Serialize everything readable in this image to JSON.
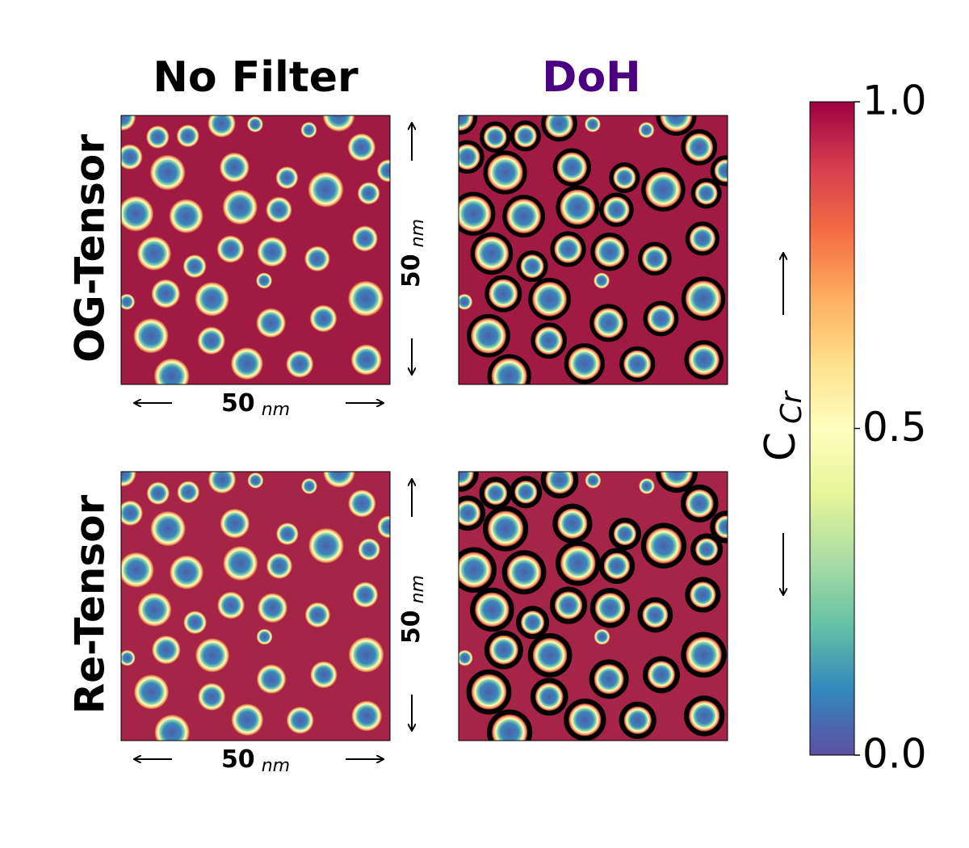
{
  "columns": [
    "No Filter",
    "DoH"
  ],
  "rows": [
    "OG-Tensor",
    "Re-Tensor"
  ],
  "scale": {
    "length": "50",
    "unit": "nm"
  },
  "colorbar": {
    "label": "C",
    "label_sub": "Cr",
    "lim": [
      0,
      1
    ],
    "ticks": [
      {
        "value": 0,
        "label": "0.0"
      },
      {
        "value": 0.5,
        "label": "0.5"
      },
      {
        "value": 1,
        "label": "1.0"
      }
    ],
    "colors": [
      "#5e4fa2",
      "#3288bd",
      "#66c2a5",
      "#abdda4",
      "#e6f598",
      "#ffffbf",
      "#fee08b",
      "#fdae61",
      "#f46d43",
      "#d53e4f",
      "#9e0142"
    ]
  },
  "title_colors": [
    "#000000",
    "#4b0082"
  ]
}
